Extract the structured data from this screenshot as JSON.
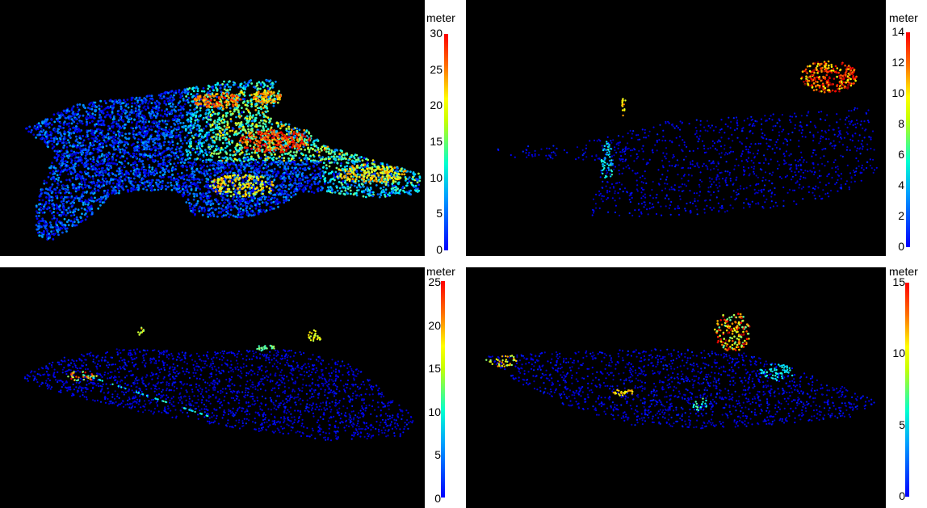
{
  "panels": [
    {
      "unit": "meter",
      "ticks": [
        "30",
        "25",
        "20",
        "15",
        "10",
        "5",
        "0"
      ],
      "density": "dense"
    },
    {
      "unit": "meter",
      "ticks": [
        "14",
        "12",
        "10",
        "8",
        "6",
        "4",
        "2",
        "0"
      ],
      "density": "sparse"
    },
    {
      "unit": "meter",
      "ticks": [
        "25",
        "20",
        "15",
        "10",
        "5",
        "0"
      ],
      "density": "sparse"
    },
    {
      "unit": "meter",
      "ticks": [
        "15",
        "10",
        "5",
        "0"
      ],
      "density": "sparse"
    }
  ],
  "colors": {
    "background": "#000000",
    "low": "#0000ff",
    "high": "#ff0000"
  }
}
